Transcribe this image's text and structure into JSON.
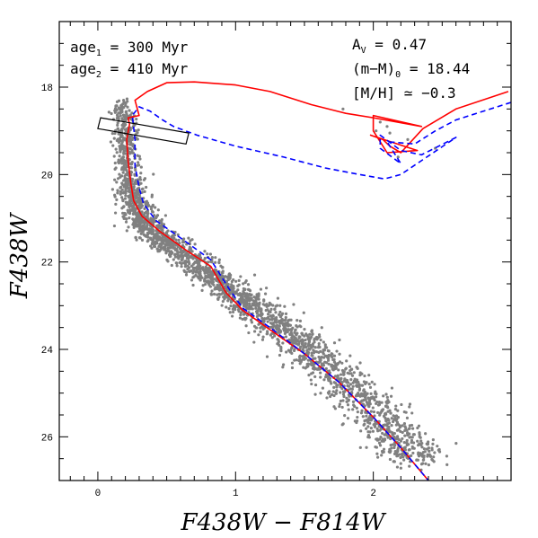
{
  "chart_data": {
    "type": "scatter",
    "xlabel": "F438W − F814W",
    "ylabel": "F438W",
    "xlim": [
      -0.28,
      3.0
    ],
    "ylim": [
      27.0,
      16.5
    ],
    "y_inverted": true,
    "x_ticks": [
      0,
      1,
      2
    ],
    "y_ticks": [
      18,
      20,
      22,
      24,
      26
    ],
    "grid": false,
    "annotations": {
      "age1": {
        "label": "age",
        "sub": "1",
        "text": " = 300 Myr"
      },
      "age2": {
        "label": "age",
        "sub": "2",
        "text": " = 410 Myr"
      },
      "av": {
        "label": "A",
        "sub": "V",
        "text": " = 0.47"
      },
      "distance": {
        "label": "(m−M)",
        "sub": "0",
        "text": " = 18.44"
      },
      "metallicity": {
        "text": "[M/H] ≃ −0.3"
      }
    },
    "box": {
      "x": [
        0.02,
        0.66,
        0.64,
        0.0
      ],
      "y": [
        18.7,
        19.05,
        19.3,
        18.95
      ]
    },
    "series": [
      {
        "kind": "scatter",
        "color": "#808080",
        "ridge": [
          [
            0.17,
            18.3
          ],
          [
            0.2,
            19.2
          ],
          [
            0.23,
            20.2
          ],
          [
            0.3,
            20.9
          ],
          [
            0.42,
            21.35
          ],
          [
            0.65,
            21.9
          ],
          [
            0.9,
            22.5
          ],
          [
            1.15,
            23.1
          ],
          [
            1.45,
            23.8
          ],
          [
            1.75,
            24.6
          ],
          [
            2.05,
            25.6
          ],
          [
            2.3,
            26.6
          ]
        ],
        "count": 2600,
        "extras": [
          [
            2.05,
            18.8
          ],
          [
            2.1,
            18.9
          ],
          [
            2.12,
            19.05
          ],
          [
            2.02,
            19.0
          ],
          [
            1.78,
            18.5
          ],
          [
            2.18,
            19.6
          ],
          [
            2.25,
            19.2
          ],
          [
            2.45,
            19.4
          ]
        ]
      },
      {
        "kind": "isochrone",
        "color": "#ff0000",
        "dash": "none",
        "points": [
          [
            2.98,
            18.1
          ],
          [
            2.6,
            18.5
          ],
          [
            2.36,
            18.95
          ],
          [
            2.2,
            19.5
          ],
          [
            2.12,
            19.35
          ],
          [
            2.07,
            19.2
          ],
          [
            1.98,
            19.1
          ],
          [
            2.32,
            19.45
          ],
          [
            2.1,
            19.5
          ],
          [
            2.0,
            19.0
          ],
          [
            2.0,
            18.65
          ],
          [
            2.35,
            18.9
          ],
          [
            2.0,
            18.7
          ],
          [
            1.8,
            18.6
          ],
          [
            1.55,
            18.4
          ],
          [
            1.25,
            18.1
          ],
          [
            1.0,
            17.95
          ],
          [
            0.7,
            17.88
          ],
          [
            0.5,
            17.9
          ],
          [
            0.36,
            18.1
          ],
          [
            0.27,
            18.3
          ],
          [
            0.3,
            18.65
          ],
          [
            0.22,
            18.7
          ],
          [
            0.23,
            18.85
          ],
          [
            0.21,
            19.2
          ],
          [
            0.22,
            19.7
          ],
          [
            0.24,
            20.2
          ],
          [
            0.26,
            20.6
          ],
          [
            0.32,
            20.95
          ],
          [
            0.45,
            21.3
          ],
          [
            0.65,
            21.75
          ],
          [
            0.82,
            22.1
          ],
          [
            0.93,
            22.7
          ],
          [
            1.05,
            23.1
          ],
          [
            1.25,
            23.55
          ],
          [
            1.5,
            24.1
          ],
          [
            1.75,
            24.75
          ],
          [
            2.0,
            25.55
          ],
          [
            2.2,
            26.25
          ],
          [
            2.4,
            27.0
          ]
        ]
      },
      {
        "kind": "isochrone",
        "color": "#0000ff",
        "dash": "6 4",
        "points": [
          [
            3.0,
            18.35
          ],
          [
            2.6,
            18.75
          ],
          [
            2.45,
            19.0
          ],
          [
            2.3,
            19.3
          ],
          [
            2.1,
            19.25
          ],
          [
            2.2,
            19.75
          ],
          [
            2.05,
            19.4
          ],
          [
            2.05,
            19.1
          ],
          [
            2.2,
            19.45
          ],
          [
            2.35,
            19.55
          ],
          [
            2.6,
            19.15
          ],
          [
            2.2,
            20.0
          ],
          [
            2.08,
            20.1
          ],
          [
            1.9,
            20.0
          ],
          [
            1.65,
            19.85
          ],
          [
            1.35,
            19.6
          ],
          [
            1.0,
            19.35
          ],
          [
            0.72,
            19.1
          ],
          [
            0.55,
            18.9
          ],
          [
            0.47,
            18.75
          ],
          [
            0.38,
            18.55
          ],
          [
            0.3,
            18.45
          ],
          [
            0.25,
            18.65
          ],
          [
            0.27,
            19.2
          ],
          [
            0.27,
            19.8
          ],
          [
            0.3,
            20.3
          ],
          [
            0.33,
            20.65
          ],
          [
            0.42,
            21.05
          ],
          [
            0.6,
            21.45
          ],
          [
            0.82,
            21.95
          ],
          [
            0.95,
            22.6
          ],
          [
            1.05,
            23.05
          ],
          [
            1.25,
            23.5
          ],
          [
            1.5,
            24.1
          ],
          [
            1.75,
            24.75
          ],
          [
            2.0,
            25.55
          ],
          [
            2.2,
            26.25
          ],
          [
            2.4,
            27.0
          ]
        ]
      }
    ]
  }
}
